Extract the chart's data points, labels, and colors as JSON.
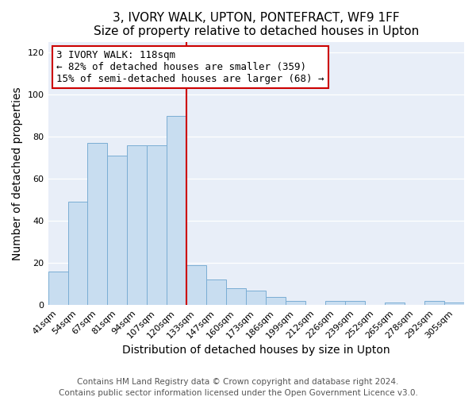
{
  "title": "3, IVORY WALK, UPTON, PONTEFRACT, WF9 1FF",
  "subtitle": "Size of property relative to detached houses in Upton",
  "xlabel": "Distribution of detached houses by size in Upton",
  "ylabel": "Number of detached properties",
  "bar_labels": [
    "41sqm",
    "54sqm",
    "67sqm",
    "81sqm",
    "94sqm",
    "107sqm",
    "120sqm",
    "133sqm",
    "147sqm",
    "160sqm",
    "173sqm",
    "186sqm",
    "199sqm",
    "212sqm",
    "226sqm",
    "239sqm",
    "252sqm",
    "265sqm",
    "278sqm",
    "292sqm",
    "305sqm"
  ],
  "bar_values": [
    16,
    49,
    77,
    71,
    76,
    76,
    90,
    19,
    12,
    8,
    7,
    4,
    2,
    0,
    2,
    2,
    0,
    1,
    0,
    2,
    1
  ],
  "bar_color": "#c8ddf0",
  "bar_edge_color": "#7aadd4",
  "marker_label": "3 IVORY WALK: 118sqm",
  "annotation_line1": "← 82% of detached houses are smaller (359)",
  "annotation_line2": "15% of semi-detached houses are larger (68) →",
  "annotation_box_color": "#ffffff",
  "annotation_box_edge": "#cc0000",
  "vline_color": "#cc0000",
  "vline_x_index": 6,
  "ylim": [
    0,
    125
  ],
  "yticks": [
    0,
    20,
    40,
    60,
    80,
    100,
    120
  ],
  "footer1": "Contains HM Land Registry data © Crown copyright and database right 2024.",
  "footer2": "Contains public sector information licensed under the Open Government Licence v3.0.",
  "title_fontsize": 11,
  "subtitle_fontsize": 10,
  "axis_label_fontsize": 10,
  "tick_fontsize": 8,
  "annotation_fontsize": 9,
  "footer_fontsize": 7.5,
  "bg_color": "#e8eef8"
}
